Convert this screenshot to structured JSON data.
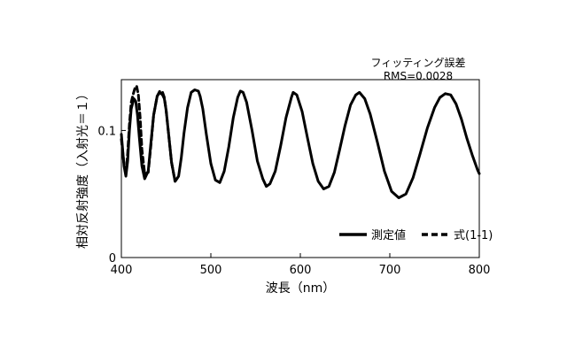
{
  "chart_data": {
    "type": "line",
    "title": "",
    "xlabel": "波長（nm）",
    "ylabel": "相対反射強度（入射光＝１）",
    "xlim": [
      400,
      800
    ],
    "ylim": [
      0,
      0.14
    ],
    "x_ticks": [
      "400",
      "500",
      "600",
      "700",
      "800"
    ],
    "y_ticks": [
      "0",
      "0.1"
    ],
    "annotation_title": "フィッティング誤差",
    "annotation_value": "RMS=0.0028",
    "grid": false,
    "legend_position": "bottom-right",
    "series": [
      {
        "name": "測定値",
        "style": "solid",
        "x": [
          400,
          403,
          405,
          407,
          409,
          411,
          414,
          416,
          418,
          420,
          423,
          426,
          430,
          433,
          436,
          440,
          443,
          446,
          448,
          450,
          453,
          456,
          460,
          464,
          467,
          470,
          474,
          478,
          482,
          486,
          488,
          491,
          495,
          500,
          505,
          510,
          515,
          520,
          525,
          530,
          533,
          536,
          540,
          546,
          552,
          558,
          562,
          566,
          572,
          578,
          584,
          590,
          592,
          596,
          602,
          608,
          614,
          620,
          626,
          632,
          638,
          644,
          650,
          656,
          662,
          666,
          672,
          678,
          686,
          694,
          702,
          710,
          718,
          726,
          734,
          742,
          750,
          756,
          762,
          768,
          774,
          780,
          786,
          792,
          798,
          800
        ],
        "y": [
          0.097,
          0.072,
          0.064,
          0.076,
          0.1,
          0.117,
          0.125,
          0.123,
          0.112,
          0.095,
          0.072,
          0.062,
          0.068,
          0.09,
          0.112,
          0.127,
          0.13,
          0.128,
          0.125,
          0.116,
          0.096,
          0.075,
          0.06,
          0.064,
          0.079,
          0.098,
          0.118,
          0.13,
          0.132,
          0.131,
          0.127,
          0.117,
          0.097,
          0.074,
          0.061,
          0.059,
          0.068,
          0.087,
          0.11,
          0.126,
          0.131,
          0.13,
          0.122,
          0.1,
          0.076,
          0.062,
          0.056,
          0.058,
          0.068,
          0.088,
          0.11,
          0.126,
          0.13,
          0.128,
          0.115,
          0.094,
          0.074,
          0.06,
          0.054,
          0.056,
          0.067,
          0.085,
          0.104,
          0.12,
          0.128,
          0.13,
          0.125,
          0.113,
          0.091,
          0.068,
          0.052,
          0.047,
          0.05,
          0.063,
          0.082,
          0.102,
          0.118,
          0.126,
          0.129,
          0.128,
          0.121,
          0.109,
          0.094,
          0.081,
          0.069,
          0.066
        ]
      },
      {
        "name": "式(1-1)",
        "style": "dashed",
        "x": [
          400,
          403,
          405,
          407,
          409,
          411,
          413,
          415,
          417,
          419,
          421,
          423,
          426,
          430,
          433,
          436,
          440,
          443,
          446,
          448,
          450,
          453,
          456,
          460,
          464
        ],
        "y": [
          0.093,
          0.073,
          0.066,
          0.082,
          0.105,
          0.122,
          0.128,
          0.133,
          0.135,
          0.128,
          0.11,
          0.085,
          0.066,
          0.067,
          0.088,
          0.112,
          0.127,
          0.131,
          0.13,
          0.126,
          0.116,
          0.096,
          0.075,
          0.06,
          0.064
        ]
      }
    ]
  }
}
